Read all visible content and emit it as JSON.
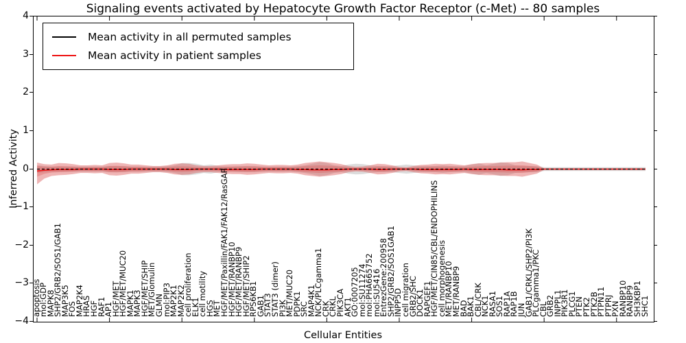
{
  "chart": {
    "title": "Signaling events activated by Hepatocyte Growth Factor Receptor (c-Met) -- 80 samples",
    "xlabel": "Cellular Entities",
    "ylabel": "Inferred Activity",
    "legend": [
      {
        "label": "Mean activity in all permuted samples",
        "color": "#000000"
      },
      {
        "label": "Mean activity in patient samples",
        "color": "#ee1111"
      }
    ],
    "ytick_labels": [
      "4",
      "3",
      "2",
      "1",
      "0",
      "−1",
      "−2",
      "−3",
      "−4"
    ]
  },
  "chart_data": {
    "type": "line",
    "title": "Signaling events activated by Hepatocyte Growth Factor Receptor (c-Met) -- 80 samples",
    "xlabel": "Cellular Entities",
    "ylabel": "Inferred Activity",
    "ylim": [
      -4,
      4
    ],
    "yticks": [
      4,
      3,
      2,
      1,
      0,
      -1,
      -2,
      -3,
      -4
    ],
    "xtick_positions": [
      0,
      10,
      20,
      30,
      40,
      50,
      60,
      70,
      80
    ],
    "legend_position": "upper left",
    "grid": false,
    "colors": {
      "permuted_line": "#000000",
      "patient_line": "#ee1111",
      "patient_band": "#d94f4f",
      "permuted_band": "#b9b9b9"
    },
    "band_opacity": {
      "patient_outer": 0.42,
      "patient_inner": 0.32,
      "permuted": 0.5
    },
    "inner_band_scale": 0.5,
    "entities": [
      "apoptosis",
      "mol:GDP",
      "MAPK8",
      "SHP2/GRB2/SOS1/GAB1",
      "MAP3K5",
      "FOS",
      "MAP2K4",
      "HRAS",
      "HGF",
      "RAF1",
      "AP1",
      "HGF/MET",
      "HGF/MET/MUC20",
      "MAPK1",
      "MAPK3",
      "HGF/MET/SHIP",
      "MET/Glomulin",
      "GLMN",
      "mol:PIP3",
      "MAP2K1",
      "MAP2K2",
      "cell proliferation",
      "ELK1",
      "cell motility",
      "HGS",
      "MET",
      "HGF/MET/Paxillin/FAK1/FAK12/RasGAP",
      "HGF/MET/RANBP10",
      "HGF/MET/RANBP9",
      "HGF/MET/SHIP2",
      "RPS6KB1",
      "GAB1",
      "STAT3",
      "STAT3 (dimer)",
      "PI3K",
      "MET/MUC20",
      "PDPK1",
      "SRC",
      "MAP4K1",
      "NCK/PLCgamma1",
      "CRK",
      "CRKL",
      "PIK3CA",
      "AKT1",
      "GO:0007205",
      "mol:SU11274",
      "mol:PHA665752",
      "mol:SU5416",
      "EntrezGene:200958",
      "SHP2/GRB2/SOS1GAB1",
      "INPP5D",
      "cell migration",
      "GRB2/SHC",
      "DOCK1",
      "RAPGEF1",
      "HGF/MET/CIN85/CBL/ENDOPHILINS",
      "cell morphogenesis",
      "MET/RANBP10",
      "MET/RANBP9",
      "BAD",
      "BAK1",
      "CBL/CRK",
      "NCK1",
      "RASA1",
      "SOS1",
      "RAP1A",
      "RAP1B",
      "JUN",
      "GAB1/CRKL/SHP2/PI3K",
      "PLCgamma1/PKC",
      "CBL",
      "GRB2",
      "INPPL1",
      "PIK3R1",
      "PLCG1",
      "PTEN",
      "PTK2",
      "PTK2B",
      "PTPN11",
      "PTPRJ",
      "PXN",
      "RANBP10",
      "RANBP9",
      "SH3KBP1",
      "SHC1"
    ],
    "series": [
      {
        "name": "Mean activity in all permuted samples",
        "mean_value": 0,
        "band_upper": [
          0.1,
          0.08,
          0.07,
          0.07,
          0.07,
          0.07,
          0.07,
          0.07,
          0.07,
          0.07,
          0.08,
          0.08,
          0.08,
          0.07,
          0.07,
          0.07,
          0.07,
          0.07,
          0.08,
          0.1,
          0.16,
          0.16,
          0.14,
          0.1,
          0.12,
          0.08,
          0.07,
          0.07,
          0.08,
          0.08,
          0.08,
          0.07,
          0.07,
          0.07,
          0.07,
          0.07,
          0.08,
          0.1,
          0.14,
          0.18,
          0.16,
          0.1,
          0.08,
          0.12,
          0.14,
          0.13,
          0.1,
          0.08,
          0.08,
          0.08,
          0.1,
          0.12,
          0.1,
          0.08,
          0.08,
          0.08,
          0.1,
          0.08,
          0.08,
          0.08,
          0.12,
          0.15,
          0.1,
          0.14,
          0.18,
          0.16,
          0.1,
          0.08,
          0.08,
          0.08,
          0.05,
          0.05,
          0.05,
          0.05,
          0.05,
          0.05,
          0.05,
          0.05,
          0.05,
          0.05,
          0.05,
          0.05,
          0.05,
          0.05,
          0.05
        ],
        "band_lower": [
          -0.1,
          -0.08,
          -0.07,
          -0.07,
          -0.07,
          -0.07,
          -0.07,
          -0.07,
          -0.07,
          -0.07,
          -0.08,
          -0.08,
          -0.08,
          -0.07,
          -0.07,
          -0.07,
          -0.07,
          -0.07,
          -0.08,
          -0.1,
          -0.16,
          -0.16,
          -0.14,
          -0.1,
          -0.12,
          -0.08,
          -0.07,
          -0.07,
          -0.08,
          -0.08,
          -0.08,
          -0.07,
          -0.07,
          -0.07,
          -0.07,
          -0.07,
          -0.08,
          -0.1,
          -0.14,
          -0.18,
          -0.16,
          -0.1,
          -0.08,
          -0.12,
          -0.14,
          -0.13,
          -0.1,
          -0.08,
          -0.08,
          -0.08,
          -0.1,
          -0.12,
          -0.1,
          -0.08,
          -0.08,
          -0.08,
          -0.1,
          -0.08,
          -0.08,
          -0.08,
          -0.12,
          -0.15,
          -0.1,
          -0.14,
          -0.18,
          -0.16,
          -0.1,
          -0.08,
          -0.08,
          -0.08,
          -0.05,
          -0.05,
          -0.05,
          -0.05,
          -0.05,
          -0.05,
          -0.05,
          -0.05,
          -0.05,
          -0.05,
          -0.05,
          -0.05,
          -0.05,
          -0.05,
          -0.05
        ]
      },
      {
        "name": "Mean activity in patient samples",
        "mean": [
          -0.05,
          -0.03,
          -0.02,
          -0.01,
          -0.01,
          -0.01,
          0,
          0,
          0,
          0,
          -0.01,
          -0.01,
          -0.01,
          0,
          0,
          0,
          0,
          0,
          0,
          -0.01,
          -0.01,
          -0.01,
          0,
          0,
          0,
          0,
          -0.01,
          -0.01,
          -0.01,
          -0.01,
          -0.01,
          0,
          0,
          0,
          0,
          0,
          -0.01,
          -0.01,
          -0.02,
          -0.02,
          -0.02,
          -0.01,
          -0.01,
          0,
          0,
          0,
          0,
          -0.01,
          -0.01,
          0,
          0,
          0,
          0,
          -0.01,
          -0.01,
          -0.01,
          -0.01,
          -0.01,
          -0.01,
          0,
          -0.01,
          -0.01,
          -0.01,
          -0.01,
          -0.01,
          -0.02,
          -0.02,
          -0.02,
          -0.01,
          -0.01,
          0,
          0,
          0,
          0,
          0,
          0,
          0,
          0,
          0,
          0,
          0,
          0,
          0,
          0,
          0
        ],
        "band_upper": [
          0.17,
          0.13,
          0.12,
          0.16,
          0.15,
          0.13,
          0.1,
          0.1,
          0.11,
          0.1,
          0.16,
          0.17,
          0.15,
          0.12,
          0.12,
          0.1,
          0.08,
          0.08,
          0.1,
          0.14,
          0.15,
          0.14,
          0.1,
          0.08,
          0.08,
          0.1,
          0.12,
          0.13,
          0.13,
          0.15,
          0.14,
          0.12,
          0.1,
          0.11,
          0.11,
          0.1,
          0.12,
          0.16,
          0.18,
          0.2,
          0.18,
          0.16,
          0.13,
          0.08,
          0.06,
          0.07,
          0.1,
          0.14,
          0.13,
          0.1,
          0.06,
          0.05,
          0.08,
          0.11,
          0.12,
          0.14,
          0.13,
          0.14,
          0.12,
          0.1,
          0.13,
          0.15,
          0.16,
          0.16,
          0.17,
          0.18,
          0.18,
          0.2,
          0.16,
          0.12,
          0.02,
          0.02,
          0.02,
          0.02,
          0.02,
          0.02,
          0.02,
          0.02,
          0.02,
          0.02,
          0.02,
          0.02,
          0.02,
          0.02,
          0.02
        ],
        "band_lower": [
          -0.4,
          -0.25,
          -0.18,
          -0.16,
          -0.15,
          -0.13,
          -0.1,
          -0.1,
          -0.11,
          -0.1,
          -0.16,
          -0.17,
          -0.15,
          -0.12,
          -0.12,
          -0.1,
          -0.08,
          -0.08,
          -0.1,
          -0.14,
          -0.15,
          -0.14,
          -0.1,
          -0.08,
          -0.08,
          -0.1,
          -0.12,
          -0.13,
          -0.13,
          -0.15,
          -0.14,
          -0.12,
          -0.1,
          -0.11,
          -0.11,
          -0.1,
          -0.12,
          -0.16,
          -0.18,
          -0.2,
          -0.18,
          -0.16,
          -0.13,
          -0.08,
          -0.06,
          -0.07,
          -0.1,
          -0.14,
          -0.13,
          -0.1,
          -0.06,
          -0.05,
          -0.08,
          -0.11,
          -0.12,
          -0.14,
          -0.13,
          -0.14,
          -0.12,
          -0.1,
          -0.13,
          -0.15,
          -0.16,
          -0.16,
          -0.17,
          -0.18,
          -0.18,
          -0.2,
          -0.16,
          -0.12,
          -0.02,
          -0.02,
          -0.02,
          -0.02,
          -0.02,
          -0.02,
          -0.02,
          -0.02,
          -0.02,
          -0.02,
          -0.02,
          -0.02,
          -0.02,
          -0.02,
          -0.02
        ]
      }
    ]
  }
}
